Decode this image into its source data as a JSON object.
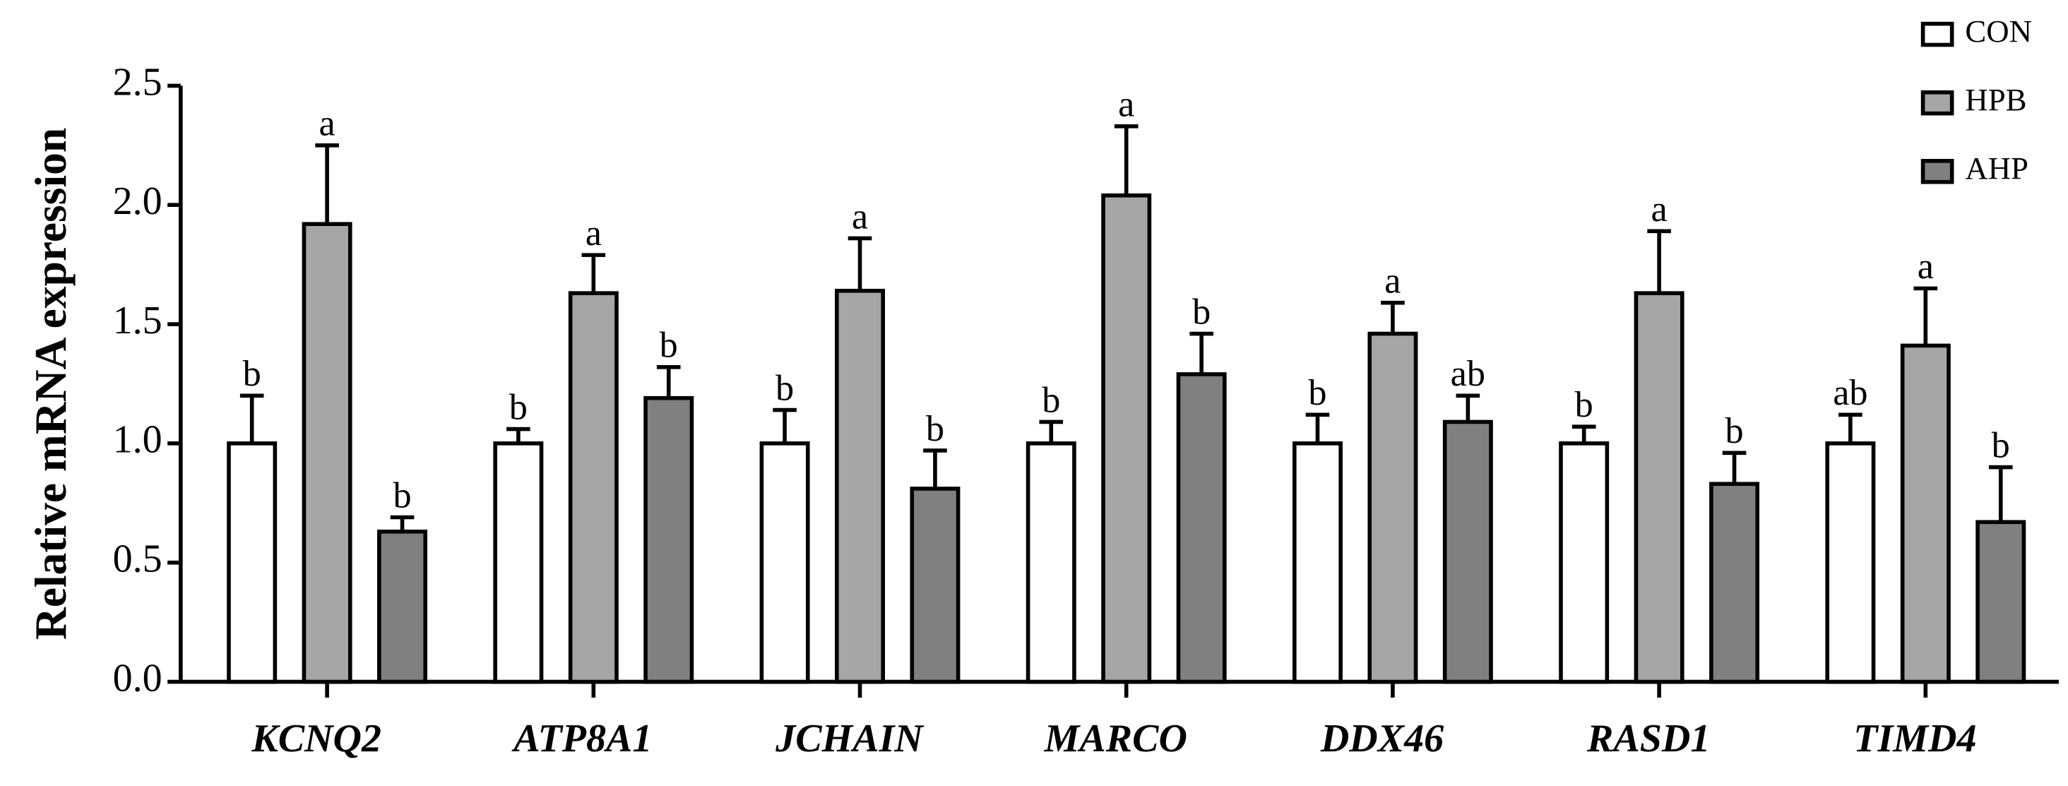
{
  "chart_data": {
    "type": "bar",
    "y_label": "Relative mRNA expression",
    "categories": [
      "KCNQ2",
      "ATP8A1",
      "JCHAIN",
      "MARCO",
      "DDX46",
      "RASD1",
      "TIMD4"
    ],
    "series": [
      {
        "name": "CON",
        "color": "#ffffff",
        "values": [
          1.0,
          1.0,
          1.0,
          1.0,
          1.0,
          1.0,
          1.0
        ],
        "errors": [
          0.2,
          0.06,
          0.14,
          0.09,
          0.12,
          0.07,
          0.12
        ],
        "labels": [
          "b",
          "b",
          "b",
          "b",
          "b",
          "b",
          "ab"
        ]
      },
      {
        "name": "HPB",
        "color": "#a6a6a6",
        "values": [
          1.92,
          1.63,
          1.64,
          2.04,
          1.46,
          1.63,
          1.41
        ],
        "errors": [
          0.33,
          0.16,
          0.22,
          0.29,
          0.13,
          0.26,
          0.24
        ],
        "labels": [
          "a",
          "a",
          "a",
          "a",
          "a",
          "a",
          "a"
        ]
      },
      {
        "name": "AHP",
        "color": "#808080",
        "values": [
          0.63,
          1.19,
          0.81,
          1.29,
          1.09,
          0.83,
          0.67
        ],
        "errors": [
          0.06,
          0.13,
          0.16,
          0.17,
          0.11,
          0.13,
          0.23
        ],
        "labels": [
          "b",
          "b",
          "b",
          "b",
          "ab",
          "b",
          "b"
        ]
      }
    ],
    "ylim": [
      0,
      2.5
    ],
    "yticks": [
      {
        "value": 0,
        "label": "0.0"
      },
      {
        "value": 0.5,
        "label": "0.5"
      },
      {
        "value": 1,
        "label": "1.0"
      },
      {
        "value": 1.5,
        "label": "1.5"
      },
      {
        "value": 2,
        "label": "2.0"
      },
      {
        "value": 2.5,
        "label": "2.5"
      }
    ],
    "legend": "top-right",
    "grid": false
  }
}
